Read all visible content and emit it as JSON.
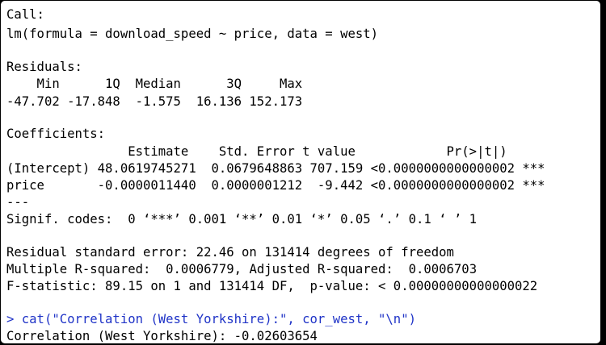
{
  "console": {
    "lines": [
      {
        "text": "Call:",
        "kind": "output"
      },
      {
        "text": "lm(formula = download_speed ~ price, data = west)",
        "kind": "output"
      },
      {
        "text": "",
        "kind": "output"
      },
      {
        "text": "Residuals:",
        "kind": "output"
      },
      {
        "text": "    Min      1Q  Median      3Q     Max ",
        "kind": "output"
      },
      {
        "text": "-47.702 -17.848  -1.575  16.136 152.173 ",
        "kind": "output"
      },
      {
        "text": "",
        "kind": "output"
      },
      {
        "text": "Coefficients:",
        "kind": "output"
      },
      {
        "text": "                Estimate    Std. Error t value            Pr(>|t|)    ",
        "kind": "output"
      },
      {
        "text": "(Intercept) 48.0619745271  0.0679648863 707.159 <0.0000000000000002 ***",
        "kind": "output"
      },
      {
        "text": "price       -0.0000011440  0.0000001212  -9.442 <0.0000000000000002 ***",
        "kind": "output"
      },
      {
        "text": "---",
        "kind": "output"
      },
      {
        "text": "Signif. codes:  0 ‘***’ 0.001 ‘**’ 0.01 ‘*’ 0.05 ‘.’ 0.1 ‘ ’ 1",
        "kind": "output"
      },
      {
        "text": "",
        "kind": "output"
      },
      {
        "text": "Residual standard error: 22.46 on 131414 degrees of freedom",
        "kind": "output"
      },
      {
        "text": "Multiple R-squared:  0.0006779,\tAdjusted R-squared:  0.0006703 ",
        "kind": "output"
      },
      {
        "text": "F-statistic: 89.15 on 1 and 131414 DF,  p-value: < 0.00000000000000022",
        "kind": "output"
      },
      {
        "text": "",
        "kind": "output"
      },
      {
        "text": "> cat(\"Correlation (West Yorkshire):\", cor_west, \"\\n\")",
        "kind": "command"
      },
      {
        "text": "Correlation (West Yorkshire): -0.02603654 ",
        "kind": "output"
      }
    ]
  }
}
